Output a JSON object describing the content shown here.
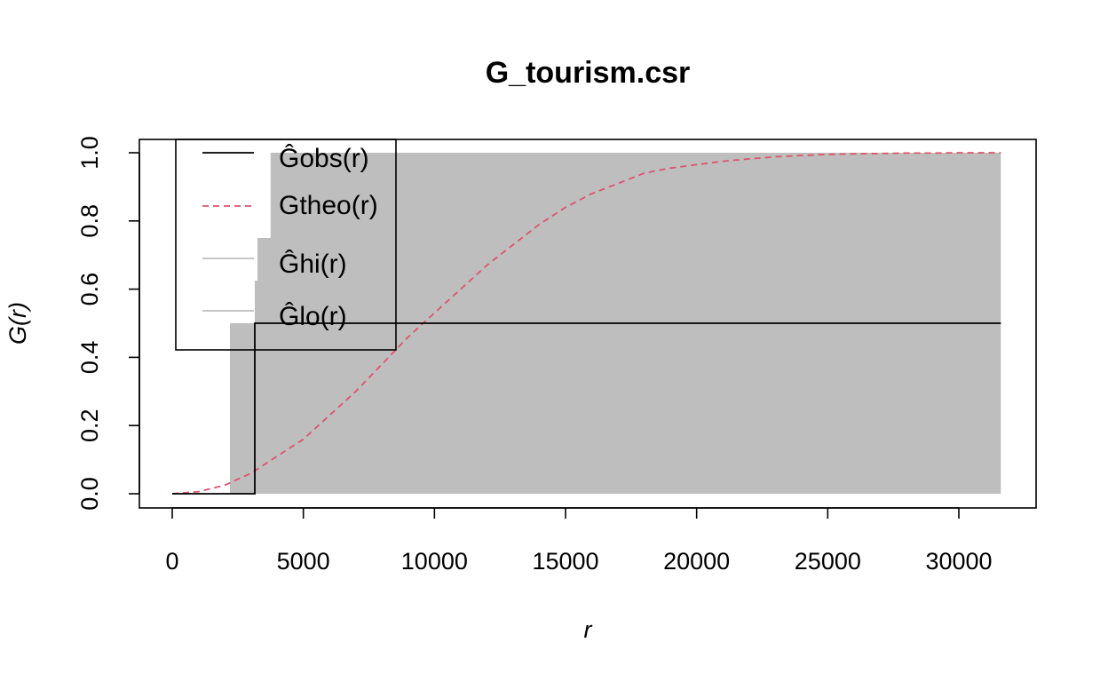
{
  "chart_data": {
    "type": "line",
    "title": "G_tourism.csr",
    "xlabel": "r",
    "ylabel": "G(r)",
    "xlim": [
      0,
      31600
    ],
    "ylim": [
      0,
      1
    ],
    "x_ticks": [
      0,
      5000,
      10000,
      15000,
      20000,
      25000,
      30000
    ],
    "y_ticks": [
      "0.0",
      "0.2",
      "0.4",
      "0.6",
      "0.8",
      "1.0"
    ],
    "grid": false,
    "legend_position": "top-left",
    "series": [
      {
        "name": "Ĝobs(r)",
        "color": "#000000",
        "style": "solid-step",
        "x": [
          0,
          3150,
          3150,
          31600
        ],
        "y": [
          0,
          0,
          0.5,
          0.5
        ]
      },
      {
        "name": "Gtheo(r)",
        "color": "#DF536B",
        "style": "dashed",
        "x": [
          0,
          1000,
          2000,
          3000,
          4000,
          5000,
          6000,
          7000,
          8000,
          9000,
          10000,
          11000,
          12000,
          13000,
          14000,
          15000,
          16000,
          17000,
          18000,
          19000,
          20000,
          21000,
          22000,
          23000,
          24000,
          25000,
          26000,
          27000,
          28000,
          29000,
          30000,
          31000,
          31600
        ],
        "y": [
          0,
          0.006,
          0.025,
          0.06,
          0.11,
          0.16,
          0.23,
          0.3,
          0.38,
          0.46,
          0.53,
          0.6,
          0.67,
          0.73,
          0.79,
          0.84,
          0.88,
          0.91,
          0.94,
          0.955,
          0.965,
          0.975,
          0.982,
          0.988,
          0.992,
          0.995,
          0.997,
          0.998,
          0.999,
          0.999,
          1.0,
          1.0,
          1.0
        ]
      },
      {
        "name": "Ĝhi(r)",
        "color": "#BEBEBE",
        "style": "envelope-upper",
        "x": [
          0,
          2200,
          2200,
          3150,
          3150,
          3250,
          3250,
          3750,
          3750,
          31600
        ],
        "y": [
          0,
          0,
          0.5,
          0.5,
          0.625,
          0.625,
          0.75,
          0.75,
          1.0,
          1.0
        ]
      },
      {
        "name": "Ĝlo(r)",
        "color": "#BEBEBE",
        "style": "envelope-lower",
        "x": [
          0,
          31600
        ],
        "y": [
          0,
          0
        ]
      }
    ]
  }
}
